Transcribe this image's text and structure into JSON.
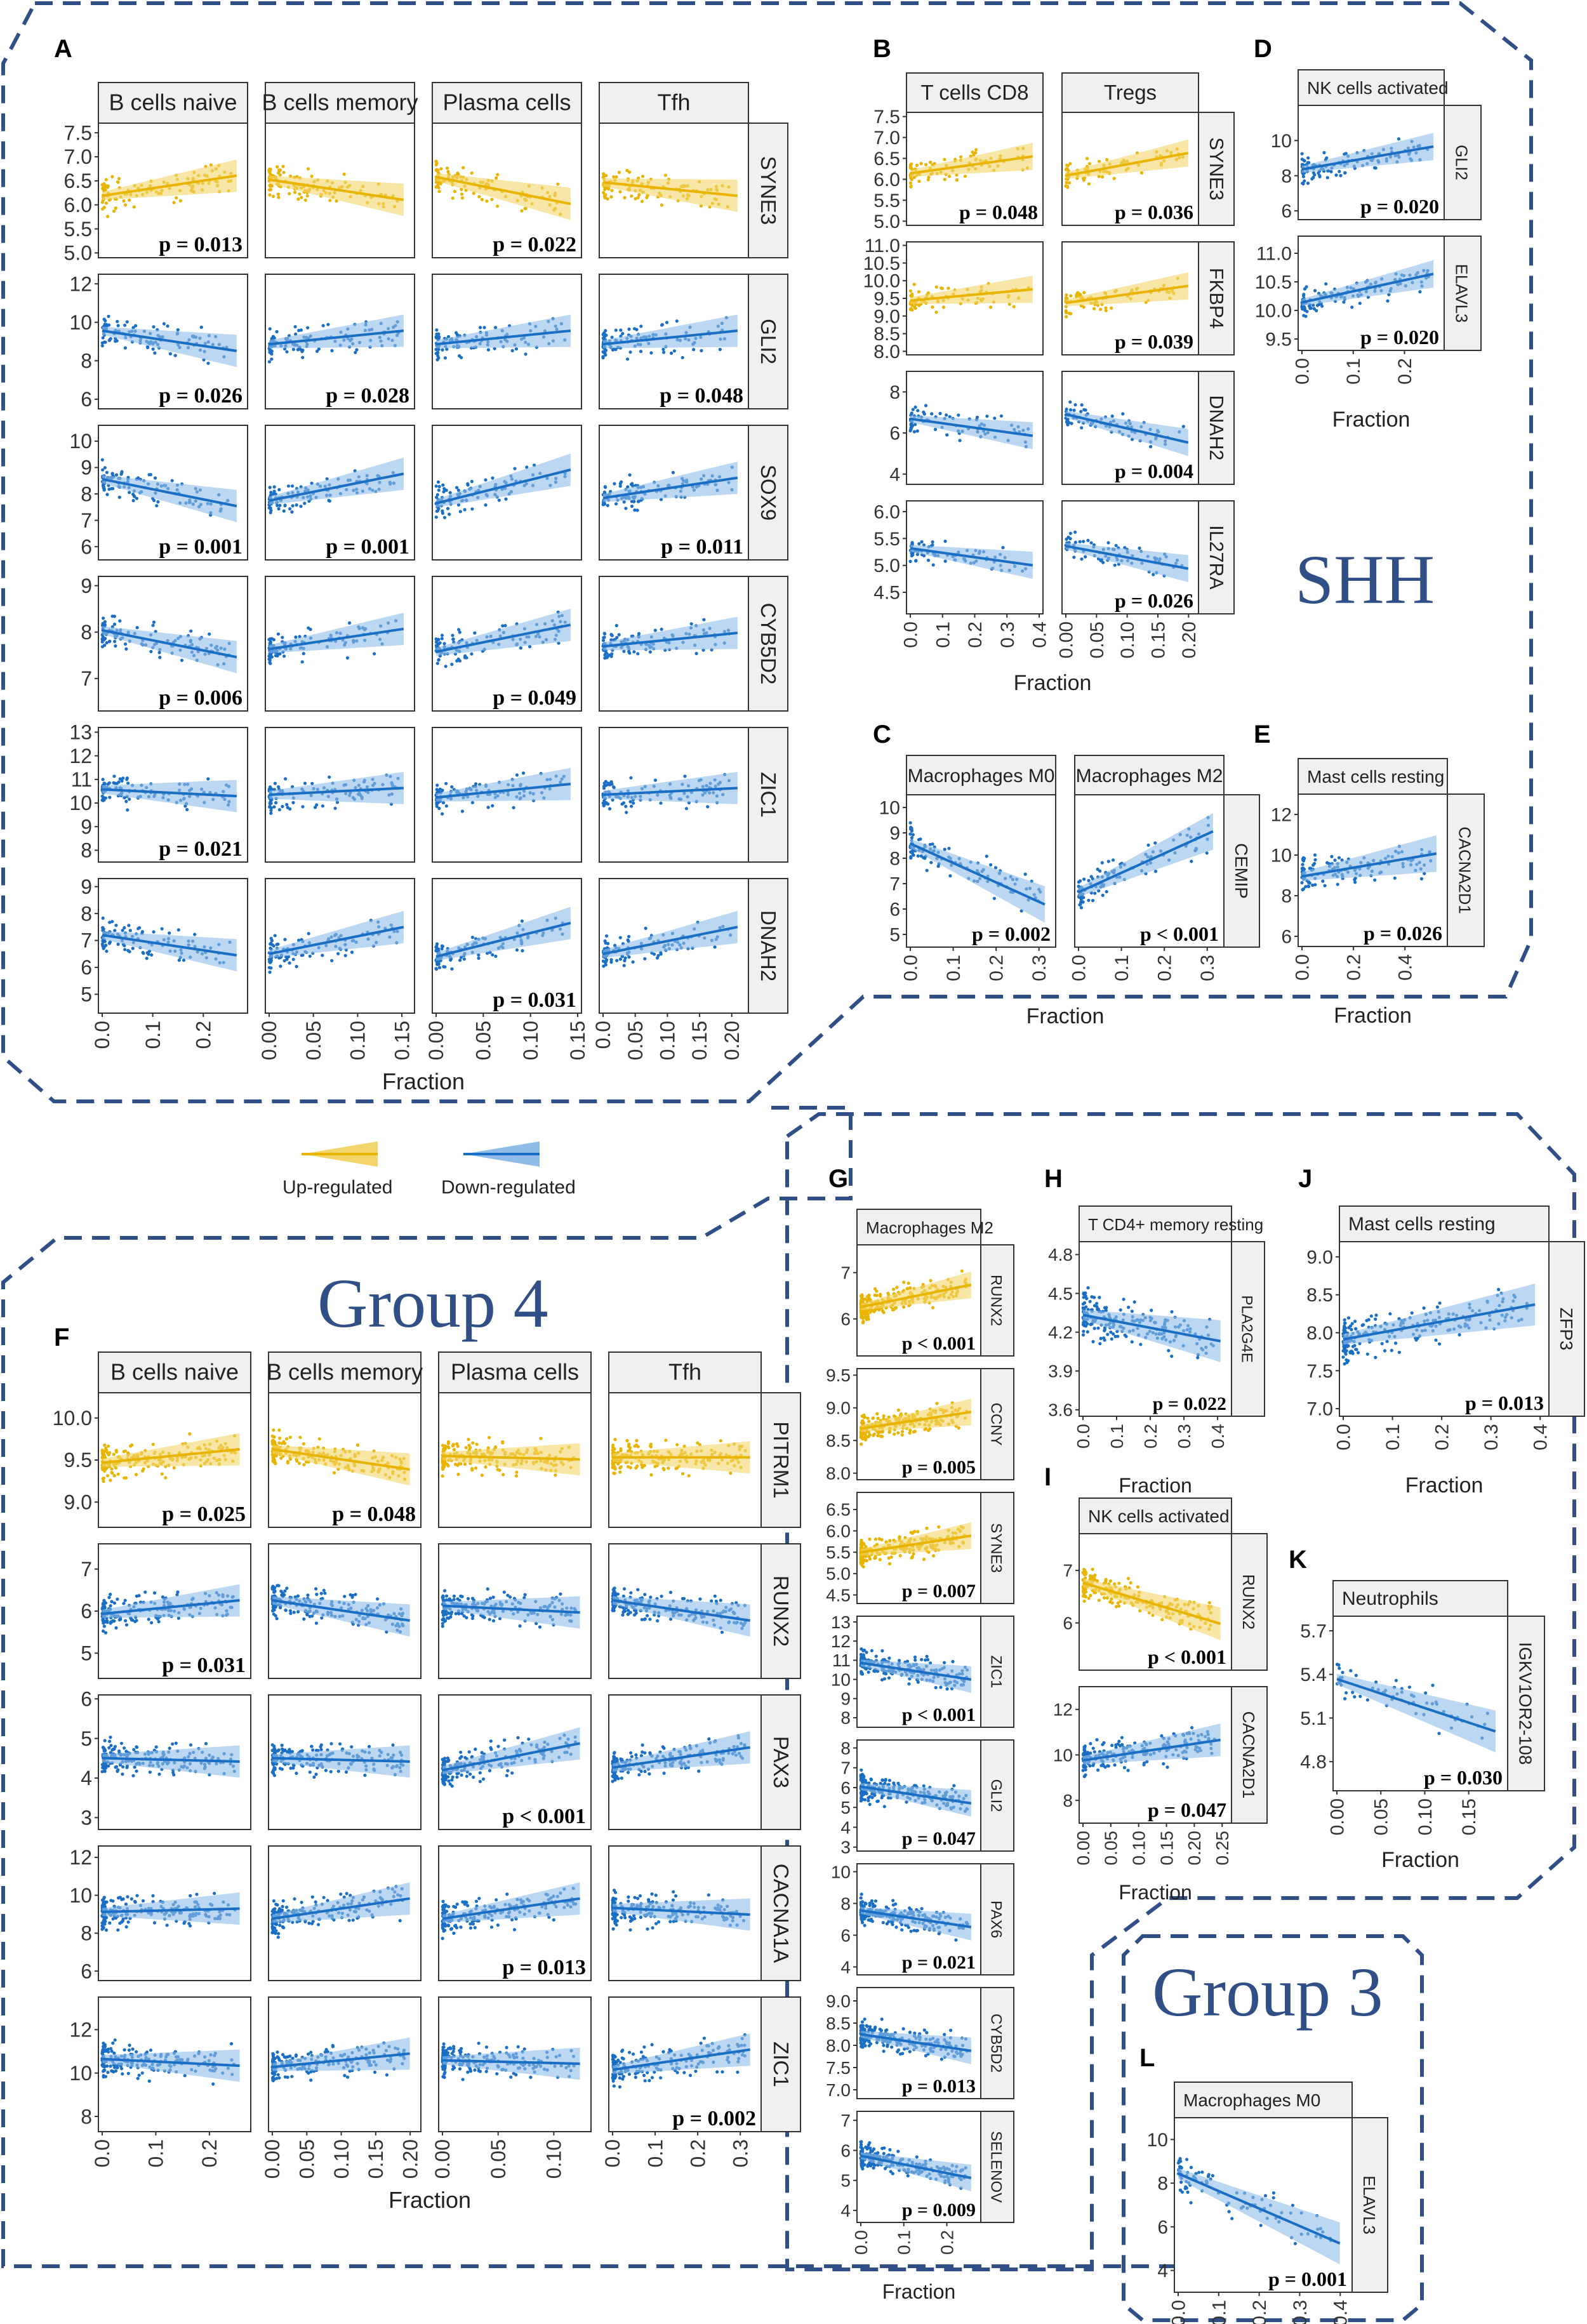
{
  "colors": {
    "up": "#e8b400",
    "down": "#1a6fc4",
    "up_band": "#f2d66b",
    "down_band": "#8fbce8",
    "frame": "#2f4f86"
  },
  "titles": {
    "shh": "SHH",
    "group4": "Group 4",
    "group3": "Group 3"
  },
  "legend": {
    "up": "Up-regulated",
    "down": "Down-regulated"
  },
  "fraction_label": "Fraction",
  "chart_data": [
    {
      "panel": "A",
      "type": "scatter",
      "columns": [
        {
          "name": "B cells naive",
          "ticks": [
            "0.0",
            "0.1",
            "0.2"
          ],
          "xmax": 0.28
        },
        {
          "name": "B cells memory",
          "ticks": [
            "0.00",
            "0.05",
            "0.10",
            "0.15"
          ],
          "xmax": 0.16
        },
        {
          "name": "Plasma cells",
          "ticks": [
            "0.00",
            "0.05",
            "0.10",
            "0.15"
          ],
          "xmax": 0.15
        },
        {
          "name": "Tfh",
          "ticks": [
            "0.0",
            "0.05",
            "0.10",
            "0.15",
            "0.20"
          ],
          "xmax": 0.22
        }
      ],
      "rows": [
        {
          "gene": "SYNE3",
          "color": "up",
          "yticks": [
            "7.5",
            "7.0",
            "6.5",
            "6.0",
            "5.5",
            "5.0"
          ],
          "ylim": [
            4.9,
            7.7
          ],
          "p": [
            "p = 0.013",
            "",
            "p = 0.022",
            ""
          ],
          "slopes": [
            0.3,
            -0.3,
            -0.4,
            -0.2
          ]
        },
        {
          "gene": "GLI2",
          "color": "down",
          "yticks": [
            "12",
            "10",
            "8",
            "6"
          ],
          "ylim": [
            5.5,
            12.5
          ],
          "p": [
            "p = 0.026",
            "p = 0.028",
            "",
            "p = 0.048"
          ],
          "slopes": [
            -0.3,
            0.2,
            0.2,
            0.2
          ]
        },
        {
          "gene": "SOX9",
          "color": "down",
          "yticks": [
            "10",
            "9",
            "8",
            "7",
            "6"
          ],
          "ylim": [
            5.5,
            10.6
          ],
          "p": [
            "p = 0.001",
            "p = 0.001",
            "",
            "p = 0.011"
          ],
          "slopes": [
            -0.4,
            0.4,
            0.5,
            0.3
          ]
        },
        {
          "gene": "CYB5D2",
          "color": "down",
          "yticks": [
            "9",
            "8",
            "7"
          ],
          "ylim": [
            6.3,
            9.2
          ],
          "p": [
            "p = 0.006",
            "",
            "p = 0.049",
            ""
          ],
          "slopes": [
            -0.4,
            0.3,
            0.4,
            0.2
          ]
        },
        {
          "gene": "ZIC1",
          "color": "down",
          "yticks": [
            "13",
            "12",
            "11",
            "10",
            "9",
            "8"
          ],
          "ylim": [
            7.5,
            13.2
          ],
          "p": [
            "p = 0.021",
            "",
            "",
            ""
          ],
          "slopes": [
            -0.1,
            0.1,
            0.2,
            0.1
          ]
        },
        {
          "gene": "DNAH2",
          "color": "down",
          "yticks": [
            "9",
            "8",
            "7",
            "6",
            "5"
          ],
          "ylim": [
            4.3,
            9.3
          ],
          "p": [
            "",
            "",
            "p = 0.031",
            ""
          ],
          "slopes": [
            -0.3,
            0.4,
            0.5,
            0.4
          ]
        }
      ]
    },
    {
      "panel": "B",
      "type": "scatter",
      "columns": [
        {
          "name": "T cells CD8",
          "ticks": [
            "0.0",
            "0.1",
            "0.2",
            "0.3",
            "0.4"
          ],
          "xmax": 0.4
        },
        {
          "name": "Tregs",
          "ticks": [
            "0.00",
            "0.05",
            "0.10",
            "0.15",
            "0.20"
          ],
          "xmax": 0.21
        }
      ],
      "rows": [
        {
          "gene": "SYNE3",
          "color": "up",
          "yticks": [
            "7.5",
            "7.0",
            "6.5",
            "6.0",
            "5.5",
            "5.0"
          ],
          "ylim": [
            4.9,
            7.6
          ],
          "p": [
            "p = 0.048",
            "p = 0.036"
          ],
          "slopes": [
            0.3,
            0.4
          ]
        },
        {
          "gene": "FKBP4",
          "color": "up",
          "yticks": [
            "11.0",
            "10.5",
            "10.0",
            "9.5",
            "9.0",
            "8.5",
            "8.0"
          ],
          "ylim": [
            7.9,
            11.1
          ],
          "p": [
            "",
            "p = 0.039"
          ],
          "slopes": [
            0.2,
            0.3
          ]
        },
        {
          "gene": "DNAH2",
          "color": "down",
          "yticks": [
            "8",
            "6",
            "4"
          ],
          "ylim": [
            3.5,
            9.0
          ],
          "p": [
            "",
            "p = 0.004"
          ],
          "slopes": [
            -0.3,
            -0.5
          ]
        },
        {
          "gene": "IL27RA",
          "color": "down",
          "yticks": [
            "6.0",
            "5.5",
            "5.0",
            "4.5"
          ],
          "ylim": [
            4.1,
            6.2
          ],
          "p": [
            "",
            "p = 0.026"
          ],
          "slopes": [
            -0.3,
            -0.4
          ]
        }
      ]
    },
    {
      "panel": "C",
      "type": "scatter",
      "columns": [
        {
          "name": "Macrophages M0",
          "ticks": [
            "0.0",
            "0.1",
            "0.2",
            "0.3"
          ],
          "xmax": 0.33
        },
        {
          "name": "Macrophages M2",
          "ticks": [
            "0.0",
            "0.1",
            "0.2",
            "0.3"
          ],
          "xmax": 0.33
        }
      ],
      "rows": [
        {
          "gene": "CEMIP",
          "color": "down",
          "yticks": [
            "10",
            "9",
            "8",
            "7",
            "6",
            "5"
          ],
          "ylim": [
            4.5,
            10.5
          ],
          "p": [
            "p = 0.002",
            "p < 0.001"
          ],
          "slopes": [
            -0.8,
            0.8
          ]
        }
      ]
    },
    {
      "panel": "D",
      "type": "scatter",
      "columns": [
        {
          "name": "NK cells activated",
          "ticks": [
            "0.0",
            "0.1",
            "0.2"
          ],
          "xmax": 0.27
        }
      ],
      "rows": [
        {
          "gene": "GLI2",
          "color": "down",
          "yticks": [
            "10",
            "8",
            "6"
          ],
          "ylim": [
            5.5,
            12.0
          ],
          "p": [
            "p = 0.020"
          ],
          "slopes": [
            0.4
          ]
        },
        {
          "gene": "ELAVL3",
          "color": "down",
          "yticks": [
            "11.0",
            "10.5",
            "10.0",
            "9.5"
          ],
          "ylim": [
            9.3,
            11.3
          ],
          "p": [
            "p = 0.020"
          ],
          "slopes": [
            0.5
          ]
        }
      ]
    },
    {
      "panel": "E",
      "type": "scatter",
      "columns": [
        {
          "name": "Mast cells resting",
          "ticks": [
            "0.0",
            "0.2",
            "0.4"
          ],
          "xmax": 0.55
        }
      ],
      "rows": [
        {
          "gene": "CACNA2D1",
          "color": "down",
          "yticks": [
            "12",
            "10",
            "8",
            "6"
          ],
          "ylim": [
            5.5,
            13.0
          ],
          "p": [
            "p = 0.026"
          ],
          "slopes": [
            0.3
          ]
        }
      ]
    },
    {
      "panel": "F",
      "type": "scatter",
      "columns": [
        {
          "name": "B cells naive",
          "ticks": [
            "0.0",
            "0.1",
            "0.2"
          ],
          "xmax": 0.27
        },
        {
          "name": "B cells memory",
          "ticks": [
            "0.00",
            "0.05",
            "0.10",
            "0.15",
            "0.20"
          ],
          "xmax": 0.21
        },
        {
          "name": "Plasma cells",
          "ticks": [
            "0.00",
            "0.05",
            "0.10"
          ],
          "xmax": 0.13
        },
        {
          "name": "Tfh",
          "ticks": [
            "0.0",
            "0.1",
            "0.2",
            "0.3"
          ],
          "xmax": 0.34
        }
      ],
      "rows": [
        {
          "gene": "PITRM1",
          "color": "up",
          "yticks": [
            "10.0",
            "9.5",
            "9.0"
          ],
          "ylim": [
            8.7,
            10.3
          ],
          "p": [
            "p = 0.025",
            "p = 0.048",
            "",
            ""
          ],
          "slopes": [
            0.2,
            -0.3,
            -0.05,
            0.0
          ]
        },
        {
          "gene": "RUNX2",
          "color": "down",
          "yticks": [
            "7",
            "6",
            "5"
          ],
          "ylim": [
            4.4,
            7.6
          ],
          "p": [
            "p = 0.031",
            "",
            "",
            ""
          ],
          "slopes": [
            0.2,
            -0.3,
            -0.1,
            -0.3
          ]
        },
        {
          "gene": "PAX3",
          "color": "down",
          "yticks": [
            "6",
            "5",
            "4",
            "3"
          ],
          "ylim": [
            2.7,
            6.1
          ],
          "p": [
            "",
            "",
            "p < 0.001",
            ""
          ],
          "slopes": [
            -0.05,
            -0.05,
            0.4,
            0.3
          ]
        },
        {
          "gene": "CACNA1A",
          "color": "down",
          "yticks": [
            "12",
            "10",
            "8",
            "6"
          ],
          "ylim": [
            5.5,
            12.6
          ],
          "p": [
            "",
            "",
            "p = 0.013",
            ""
          ],
          "slopes": [
            0.05,
            0.3,
            0.3,
            -0.1
          ]
        },
        {
          "gene": "ZIC1",
          "color": "down",
          "yticks": [
            "12",
            "10",
            "8"
          ],
          "ylim": [
            7.3,
            13.5
          ],
          "p": [
            "",
            "",
            "",
            "p = 0.002"
          ],
          "slopes": [
            -0.1,
            0.2,
            -0.05,
            0.3
          ]
        }
      ]
    },
    {
      "panel": "G",
      "type": "scatter",
      "columns": [
        {
          "name": "Macrophages M2",
          "ticks": [
            "0.0",
            "0.1",
            "0.2"
          ],
          "xmax": 0.27
        }
      ],
      "rows": [
        {
          "gene": "RUNX2",
          "color": "up",
          "yticks": [
            "7",
            "6"
          ],
          "ylim": [
            5.2,
            7.6
          ],
          "p": [
            "p < 0.001"
          ],
          "slopes": [
            0.4
          ]
        },
        {
          "gene": "CCNY",
          "color": "up",
          "yticks": [
            "9.5",
            "9.0",
            "8.5",
            "8.0"
          ],
          "ylim": [
            7.9,
            9.6
          ],
          "p": [
            "p = 0.005"
          ],
          "slopes": [
            0.3
          ]
        },
        {
          "gene": "SYNE3",
          "color": "up",
          "yticks": [
            "6.5",
            "6.0",
            "5.5",
            "5.0",
            "4.5"
          ],
          "ylim": [
            4.3,
            6.9
          ],
          "p": [
            "p = 0.007"
          ],
          "slopes": [
            0.3
          ]
        },
        {
          "gene": "ZIC1",
          "color": "down",
          "yticks": [
            "13",
            "12",
            "11",
            "10",
            "9",
            "8"
          ],
          "ylim": [
            7.5,
            13.3
          ],
          "p": [
            "p < 0.001"
          ],
          "slopes": [
            -0.3
          ]
        },
        {
          "gene": "GLI2",
          "color": "down",
          "yticks": [
            "8",
            "7",
            "6",
            "5",
            "4",
            "3"
          ],
          "ylim": [
            2.8,
            8.4
          ],
          "p": [
            "p = 0.047"
          ],
          "slopes": [
            -0.3
          ]
        },
        {
          "gene": "PAX6",
          "color": "down",
          "yticks": [
            "10",
            "8",
            "6",
            "4"
          ],
          "ylim": [
            3.5,
            10.5
          ],
          "p": [
            "p = 0.021"
          ],
          "slopes": [
            -0.3
          ]
        },
        {
          "gene": "CYB5D2",
          "color": "down",
          "yticks": [
            "9.0",
            "8.5",
            "8.0",
            "7.5",
            "7.0"
          ],
          "ylim": [
            6.8,
            9.3
          ],
          "p": [
            "p = 0.013"
          ],
          "slopes": [
            -0.3
          ]
        },
        {
          "gene": "SELENOV",
          "color": "down",
          "yticks": [
            "7",
            "6",
            "5",
            "4"
          ],
          "ylim": [
            3.6,
            7.3
          ],
          "p": [
            "p = 0.009"
          ],
          "slopes": [
            -0.4
          ]
        }
      ]
    },
    {
      "panel": "H",
      "type": "scatter",
      "columns": [
        {
          "name": "T CD4+ memory resting",
          "ticks": [
            "0.0",
            "0.1",
            "0.2",
            "0.3",
            "0.4"
          ],
          "xmax": 0.43
        }
      ],
      "rows": [
        {
          "gene": "PLA2G4E",
          "color": "down",
          "yticks": [
            "4.8",
            "4.5",
            "4.2",
            "3.9",
            "3.6"
          ],
          "ylim": [
            3.55,
            4.9
          ],
          "p": [
            "p = 0.022"
          ],
          "slopes": [
            -0.3
          ]
        }
      ]
    },
    {
      "panel": "I",
      "type": "scatter",
      "columns": [
        {
          "name": "NK cells activated",
          "ticks": [
            "0.00",
            "0.05",
            "0.10",
            "0.15",
            "0.20",
            "0.25"
          ],
          "xmax": 0.26
        }
      ],
      "rows": [
        {
          "gene": "RUNX2",
          "color": "up",
          "yticks": [
            "7",
            "6"
          ],
          "ylim": [
            5.1,
            7.7
          ],
          "p": [
            "p < 0.001"
          ],
          "slopes": [
            -0.6
          ]
        },
        {
          "gene": "CACNA2D1",
          "color": "down",
          "yticks": [
            "12",
            "10",
            "8"
          ],
          "ylim": [
            7.0,
            13.0
          ],
          "p": [
            "p = 0.047"
          ],
          "slopes": [
            0.3
          ]
        }
      ]
    },
    {
      "panel": "J",
      "type": "scatter",
      "columns": [
        {
          "name": "Mast cells resting",
          "ticks": [
            "0.0",
            "0.1",
            "0.2",
            "0.3",
            "0.4"
          ],
          "xmax": 0.41
        }
      ],
      "rows": [
        {
          "gene": "ZFP3",
          "color": "down",
          "yticks": [
            "9.0",
            "8.5",
            "8.0",
            "7.5",
            "7.0"
          ],
          "ylim": [
            6.9,
            9.2
          ],
          "p": [
            "p = 0.013"
          ],
          "slopes": [
            0.4
          ]
        }
      ]
    },
    {
      "panel": "K",
      "type": "scatter",
      "columns": [
        {
          "name": "Neutrophils",
          "ticks": [
            "0.00",
            "0.05",
            "0.10",
            "0.15"
          ],
          "xmax": 0.19
        }
      ],
      "rows": [
        {
          "gene": "IGKV1OR2-108",
          "color": "down",
          "yticks": [
            "5.7",
            "5.4",
            "5.1",
            "4.8"
          ],
          "ylim": [
            4.6,
            5.8
          ],
          "p": [
            "p = 0.030"
          ],
          "slopes": [
            -0.6
          ]
        }
      ]
    },
    {
      "panel": "L",
      "type": "scatter",
      "columns": [
        {
          "name": "Macrophages M0",
          "ticks": [
            "0.0",
            "0.1",
            "0.2",
            "0.3",
            "0.4"
          ],
          "xmax": 0.42
        }
      ],
      "rows": [
        {
          "gene": "ELAVL3",
          "color": "down",
          "yticks": [
            "10",
            "8",
            "6",
            "4"
          ],
          "ylim": [
            3.0,
            11.0
          ],
          "p": [
            "p = 0.001"
          ],
          "slopes": [
            -0.8
          ]
        }
      ]
    }
  ]
}
